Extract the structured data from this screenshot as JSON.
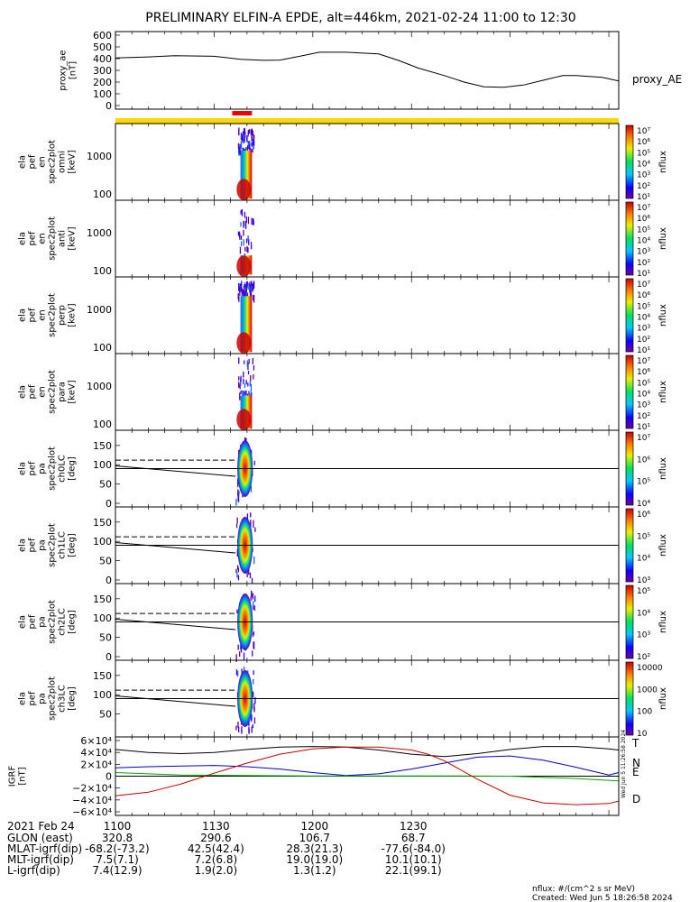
{
  "title": "PRELIMINARY ELFIN-A EPDE, alt=446km, 2021-02-24 11:00 to 12:30",
  "colors": {
    "frame": "#000000",
    "yellow_bar": "#ffd700",
    "red_bar": "#ee0000",
    "igrf_T": "#000000",
    "igrf_N": "#0000cc",
    "igrf_E": "#00aa00",
    "igrf_D": "#cc0000"
  },
  "chart_data": [
    {
      "type": "line",
      "panel": "proxy_ae",
      "ylabel": [
        "proxy_ae",
        "[nT]"
      ],
      "series_label": "proxy_AE",
      "yticks": [
        "600",
        "500",
        "400",
        "300",
        "200",
        "100",
        "0"
      ],
      "ylim": [
        0,
        600
      ],
      "x_minutes": [
        0,
        10,
        18,
        30,
        38,
        45,
        50,
        56,
        62,
        70,
        80,
        86,
        92,
        100,
        106,
        112,
        118,
        124,
        130,
        136,
        140,
        148,
        153
      ],
      "y": [
        405,
        415,
        425,
        420,
        395,
        385,
        388,
        420,
        455,
        455,
        440,
        385,
        320,
        255,
        200,
        160,
        155,
        175,
        215,
        255,
        255,
        240,
        210
      ]
    },
    {
      "type": "timebar",
      "panel": "coverage",
      "segments": [
        {
          "color": "yellow",
          "start_min": 0,
          "end_min": 153
        },
        {
          "color": "red",
          "start_min": 35.5,
          "end_min": 41.5
        }
      ]
    },
    {
      "type": "heatmap",
      "panel": "en_omni",
      "ylabel": [
        "ela",
        "pef",
        "en",
        "spec2plot",
        "omni",
        "[keV]"
      ],
      "yticks": [
        "1000",
        "100"
      ],
      "colorbar_label": "nflux",
      "colorbar_ticks": [
        "10⁷",
        "10⁶",
        "10⁵",
        "10⁴",
        "10³",
        "10²",
        "10¹"
      ]
    },
    {
      "type": "heatmap",
      "panel": "en_anti",
      "ylabel": [
        "ela",
        "pef",
        "en",
        "spec2plot",
        "anti",
        "[keV]"
      ],
      "yticks": [
        "1000",
        "100"
      ],
      "colorbar_label": "nflux",
      "colorbar_ticks": [
        "10⁷",
        "10⁶",
        "10⁵",
        "10⁴",
        "10³",
        "10²",
        "10¹"
      ]
    },
    {
      "type": "heatmap",
      "panel": "en_perp",
      "ylabel": [
        "ela",
        "pef",
        "en",
        "spec2plot",
        "perp",
        "[keV]"
      ],
      "yticks": [
        "1000",
        "100"
      ],
      "colorbar_label": "nflux",
      "colorbar_ticks": [
        "10⁷",
        "10⁶",
        "10⁵",
        "10⁴",
        "10³",
        "10²",
        "10¹"
      ]
    },
    {
      "type": "heatmap",
      "panel": "en_para",
      "ylabel": [
        "ela",
        "pef",
        "en",
        "spec2plot",
        "para",
        "[keV]"
      ],
      "yticks": [
        "1000",
        "100"
      ],
      "colorbar_label": "nflux",
      "colorbar_ticks": [
        "10⁷",
        "10⁶",
        "10⁵",
        "10⁴",
        "10³",
        "10²",
        "10¹"
      ]
    },
    {
      "type": "heatmap",
      "panel": "pa_ch0",
      "ylabel": [
        "ela",
        "pef",
        "pa",
        "spec2plot",
        "ch0LC",
        "[deg]"
      ],
      "yticks": [
        "150",
        "100",
        "50",
        "0"
      ],
      "colorbar_label": "nflux",
      "colorbar_ticks": [
        "10⁷",
        "10⁶",
        "10⁵",
        "10⁴"
      ]
    },
    {
      "type": "heatmap",
      "panel": "pa_ch1",
      "ylabel": [
        "ela",
        "pef",
        "pa",
        "spec2plot",
        "ch1LC",
        "[deg]"
      ],
      "yticks": [
        "150",
        "100",
        "50",
        "0"
      ],
      "colorbar_label": "nflux",
      "colorbar_ticks": [
        "10⁶",
        "10⁵",
        "10⁴",
        "10³"
      ]
    },
    {
      "type": "heatmap",
      "panel": "pa_ch2",
      "ylabel": [
        "ela",
        "pef",
        "pa",
        "spec2plot",
        "ch2LC",
        "[deg]"
      ],
      "yticks": [
        "150",
        "100",
        "50",
        "0"
      ],
      "colorbar_label": "nflux",
      "colorbar_ticks": [
        "10⁵",
        "10⁴",
        "10³",
        "10²"
      ]
    },
    {
      "type": "heatmap",
      "panel": "pa_ch3",
      "ylabel": [
        "ela",
        "pef",
        "pa",
        "spec2plot",
        "ch3LC",
        "[deg]"
      ],
      "yticks": [
        "150",
        "100",
        "50"
      ],
      "colorbar_label": "nflux",
      "colorbar_ticks": [
        "10000",
        "1000",
        "100",
        "10"
      ]
    },
    {
      "type": "line",
      "panel": "igrf",
      "ylabel": [
        "IGRF",
        "[nT]"
      ],
      "yticks": [
        "6×10⁴",
        "4×10⁴",
        "2×10⁴",
        "0",
        "−2×10⁴",
        "−4×10⁴",
        "−6×10⁴"
      ],
      "ylim": [
        -60000,
        60000
      ],
      "series": [
        {
          "name": "T",
          "x": [
            0,
            10,
            20,
            30,
            40,
            50,
            60,
            70,
            80,
            90,
            100,
            110,
            120,
            130,
            140,
            150,
            153
          ],
          "y": [
            45000,
            40000,
            38000,
            40000,
            45000,
            49000,
            50000,
            49000,
            44000,
            37000,
            33000,
            38000,
            45000,
            50000,
            50000,
            46000,
            44000
          ]
        },
        {
          "name": "N",
          "x": [
            0,
            10,
            20,
            30,
            40,
            50,
            60,
            70,
            80,
            90,
            100,
            110,
            120,
            130,
            140,
            150,
            153
          ],
          "y": [
            14000,
            16000,
            17000,
            18000,
            16000,
            12000,
            6000,
            1000,
            4000,
            12000,
            22000,
            32000,
            34000,
            27000,
            15000,
            2000,
            6000
          ]
        },
        {
          "name": "E",
          "x": [
            0,
            20,
            40,
            60,
            80,
            100,
            120,
            140,
            153
          ],
          "y": [
            6000,
            2000,
            1000,
            500,
            300,
            500,
            0,
            -4000,
            -8000
          ]
        },
        {
          "name": "D",
          "x": [
            0,
            10,
            20,
            30,
            40,
            50,
            60,
            70,
            80,
            90,
            95,
            100,
            110,
            120,
            130,
            140,
            150,
            153
          ],
          "y": [
            -33000,
            -27000,
            -13000,
            5000,
            22000,
            37000,
            46000,
            49000,
            49000,
            44000,
            37000,
            26000,
            -5000,
            -32000,
            -45000,
            -48000,
            -46000,
            -42000
          ]
        }
      ]
    }
  ],
  "axis": {
    "date": "2021 Feb 24",
    "time_ticks": [
      "1100",
      "1130",
      "1200",
      "1230"
    ],
    "rows": [
      {
        "label": "GLON (east)",
        "values": [
          "320.8",
          "290.6",
          "106.7",
          "68.7"
        ]
      },
      {
        "label": "MLAT-igrf(dip)",
        "values": [
          "-68.2(-73.2)",
          "42.5(42.4)",
          "28.3(21.3)",
          "-77.6(-84.0)"
        ]
      },
      {
        "label": "MLT-igrf(dip)",
        "values": [
          "7.5(7.1)",
          "7.2(6.8)",
          "19.0(19.0)",
          "10.1(10.1)"
        ]
      },
      {
        "label": "L-igrf(dip)",
        "values": [
          "7.4(12.9)",
          "1.9(2.0)",
          "1.3(1.2)",
          "22.1(99.1)"
        ]
      }
    ]
  },
  "footer": {
    "units": "nflux: #/(cm^2 s sr MeV)",
    "created": "Created: Wed Jun  5 18:26:58 2024",
    "vertical_stamp": "Wed Jun  5 11:26:58 2024"
  }
}
